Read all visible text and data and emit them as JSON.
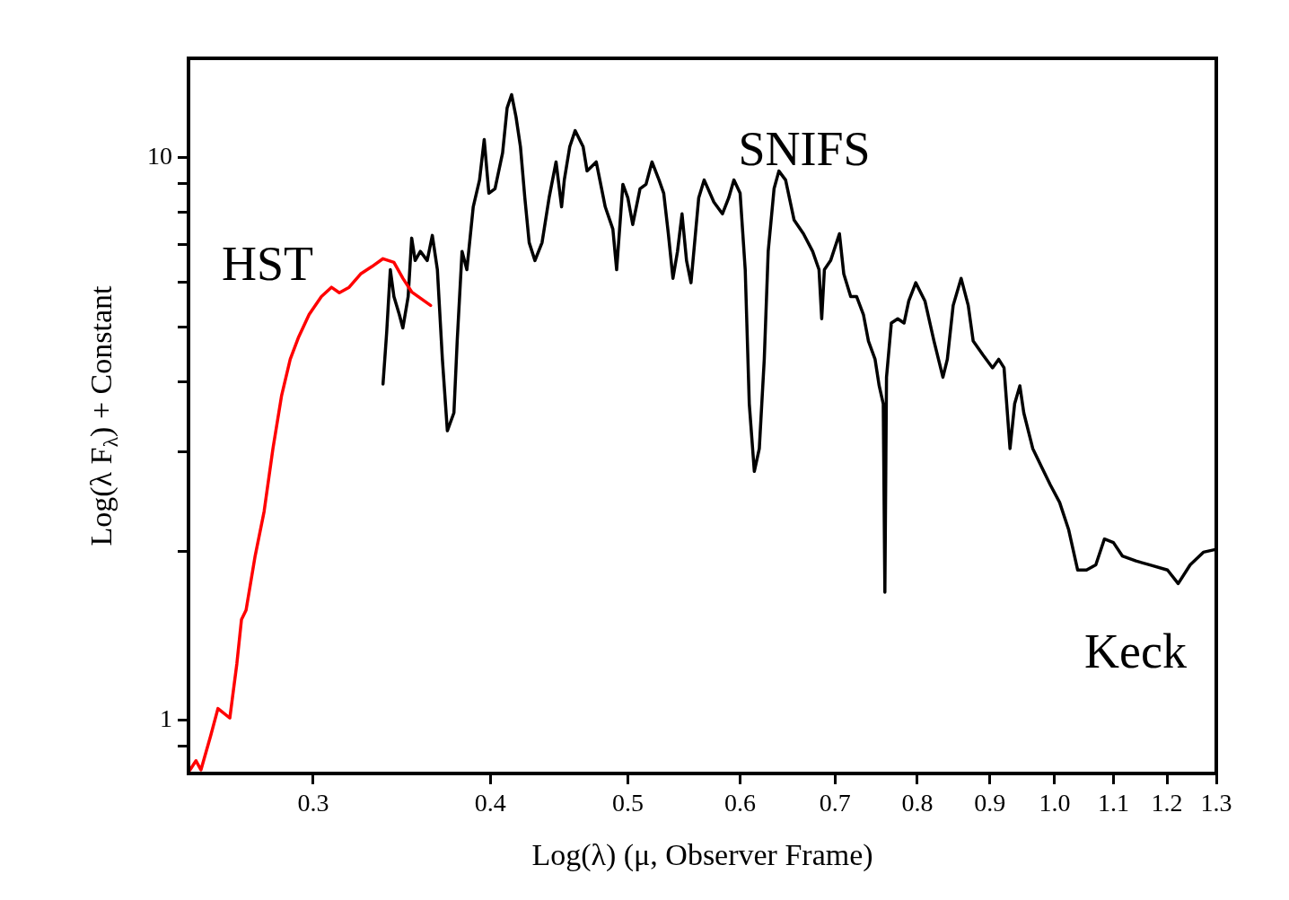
{
  "chart_data": {
    "type": "line",
    "xlabel": "Log(λ) (μ, Observer Frame)",
    "ylabel": "Log(λ F$_{λ}$) + Constant",
    "log": "xy",
    "grid": false,
    "legend": false,
    "marker": "none",
    "line_style": "solid",
    "xlim": [
      0.245,
      1.3
    ],
    "xticks": [
      0.3,
      0.4,
      0.5,
      0.6,
      0.7,
      0.8,
      0.9,
      {
        "value": 1,
        "label": "1.0"
      },
      1.1,
      1.2,
      1.3
    ],
    "ylim": [
      0.805,
      15
    ],
    "yticks": [
      {
        "value": 0.9,
        "label": null
      },
      1,
      {
        "value": 2,
        "label": null
      },
      {
        "value": 3,
        "label": null
      },
      {
        "value": 4,
        "label": null
      },
      {
        "value": 5,
        "label": null
      },
      {
        "value": 6,
        "label": null
      },
      {
        "value": 7,
        "label": null
      },
      {
        "value": 8,
        "label": null
      },
      {
        "value": 9,
        "label": null
      },
      10
    ],
    "annotations": [
      "HST",
      "SNIFS",
      "Keck"
    ],
    "series": [
      {
        "color": "#ff0000",
        "x": [
          0.2456,
          0.248,
          0.25,
          0.254,
          0.257,
          0.262,
          0.265,
          0.267,
          0.269,
          0.273,
          0.277,
          0.281,
          0.285,
          0.289,
          0.293,
          0.298,
          0.304,
          0.309,
          0.313,
          0.318,
          0.324,
          0.33,
          0.336,
          0.342,
          0.347,
          0.352,
          0.363
        ],
        "values": [
          0.817,
          0.848,
          0.817,
          0.94,
          1.05,
          1.01,
          1.26,
          1.51,
          1.57,
          1.96,
          2.35,
          3.04,
          3.78,
          4.38,
          4.8,
          5.26,
          5.66,
          5.88,
          5.75,
          5.88,
          6.21,
          6.4,
          6.61,
          6.51,
          6.1,
          5.77,
          5.46
        ]
      },
      {
        "color": "#000000",
        "x": [
          0.336,
          0.338,
          0.34,
          0.342,
          0.345,
          0.347,
          0.35,
          0.352,
          0.354,
          0.357,
          0.361,
          0.364,
          0.367,
          0.37,
          0.373,
          0.377,
          0.379,
          0.382,
          0.385,
          0.389,
          0.393,
          0.396,
          0.399,
          0.403,
          0.408,
          0.411,
          0.414,
          0.417,
          0.42,
          0.423,
          0.426,
          0.43,
          0.435,
          0.44,
          0.445,
          0.449,
          0.451,
          0.455,
          0.459,
          0.465,
          0.468,
          0.475,
          0.482,
          0.488,
          0.491,
          0.496,
          0.5,
          0.504,
          0.51,
          0.515,
          0.52,
          0.526,
          0.53,
          0.534,
          0.538,
          0.542,
          0.546,
          0.55,
          0.554,
          0.561,
          0.566,
          0.575,
          0.583,
          0.589,
          0.594,
          0.6,
          0.605,
          0.609,
          0.614,
          0.619,
          0.624,
          0.628,
          0.634,
          0.639,
          0.646,
          0.655,
          0.665,
          0.675,
          0.682,
          0.685,
          0.688,
          0.695,
          0.705,
          0.71,
          0.718,
          0.725,
          0.733,
          0.739,
          0.747,
          0.752,
          0.757,
          0.759,
          0.761,
          0.767,
          0.775,
          0.783,
          0.789,
          0.798,
          0.81,
          0.822,
          0.834,
          0.84,
          0.848,
          0.859,
          0.869,
          0.876,
          0.89,
          0.904,
          0.913,
          0.921,
          0.93,
          0.937,
          0.945,
          0.951,
          0.965,
          0.979,
          0.993,
          1.008,
          1.023,
          1.038,
          1.053,
          1.069,
          1.084,
          1.1,
          1.116,
          1.141,
          1.166,
          1.201,
          1.222,
          1.246,
          1.273,
          1.296
        ],
        "values": [
          3.96,
          4.89,
          6.32,
          5.66,
          5.26,
          4.98,
          5.66,
          7.19,
          6.56,
          6.81,
          6.56,
          7.27,
          6.32,
          4.38,
          3.27,
          3.52,
          4.72,
          6.81,
          6.32,
          8.17,
          9.12,
          10.76,
          8.64,
          8.8,
          10.19,
          12.24,
          12.93,
          11.8,
          10.45,
          8.48,
          7.06,
          6.56,
          7.06,
          8.48,
          9.82,
          8.17,
          9.12,
          10.45,
          11.16,
          10.45,
          9.46,
          9.82,
          8.17,
          7.46,
          6.32,
          8.96,
          8.48,
          7.6,
          8.8,
          8.96,
          9.82,
          9.12,
          8.64,
          7.32,
          6.1,
          6.81,
          7.94,
          6.56,
          5.99,
          8.48,
          9.12,
          8.33,
          7.94,
          8.48,
          9.12,
          8.64,
          6.32,
          3.65,
          2.77,
          3.04,
          4.38,
          6.81,
          8.8,
          9.46,
          9.12,
          7.74,
          7.32,
          6.81,
          6.32,
          5.17,
          6.32,
          6.56,
          7.32,
          6.21,
          5.66,
          5.66,
          5.26,
          4.72,
          4.38,
          3.93,
          3.65,
          1.69,
          4.07,
          5.08,
          5.17,
          5.08,
          5.56,
          5.99,
          5.56,
          4.72,
          4.07,
          4.38,
          5.46,
          6.1,
          5.46,
          4.72,
          4.46,
          4.23,
          4.38,
          4.23,
          3.04,
          3.65,
          3.93,
          3.52,
          3.04,
          2.82,
          2.62,
          2.44,
          2.18,
          1.85,
          1.85,
          1.89,
          2.1,
          2.07,
          1.96,
          1.92,
          1.89,
          1.85,
          1.75,
          1.89,
          1.99,
          2.01
        ]
      }
    ]
  }
}
